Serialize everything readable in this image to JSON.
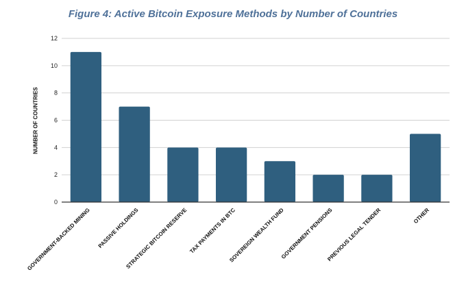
{
  "chart_data": {
    "type": "bar",
    "title": "Figure 4: Active Bitcoin Exposure Methods by Number of Countries",
    "xlabel": "",
    "ylabel": "NUMBER OF COUNTRIES",
    "categories": [
      "GOVERNMENT-BACKED MINING",
      "PASSIVE HOLDINGS",
      "STRATEGIC BITCOIN RESERVE",
      "TAX PAYMENTS IN BTC",
      "SOVEREIGN WEALTH FUND",
      "GOVERNMENT PENSIONS",
      "PREVIOUS LEGAL TENDER",
      "OTHER"
    ],
    "values": [
      11,
      7,
      4,
      4,
      3,
      2,
      2,
      5
    ],
    "ylim": [
      0,
      12
    ],
    "yticks": [
      0,
      2,
      4,
      6,
      8,
      10,
      12
    ],
    "grid": true,
    "legend": "none",
    "bar_color": "#2f5f7f",
    "title_color": "#4f7199",
    "grid_color": "#d0d0d0",
    "axis_color": "#333333"
  }
}
